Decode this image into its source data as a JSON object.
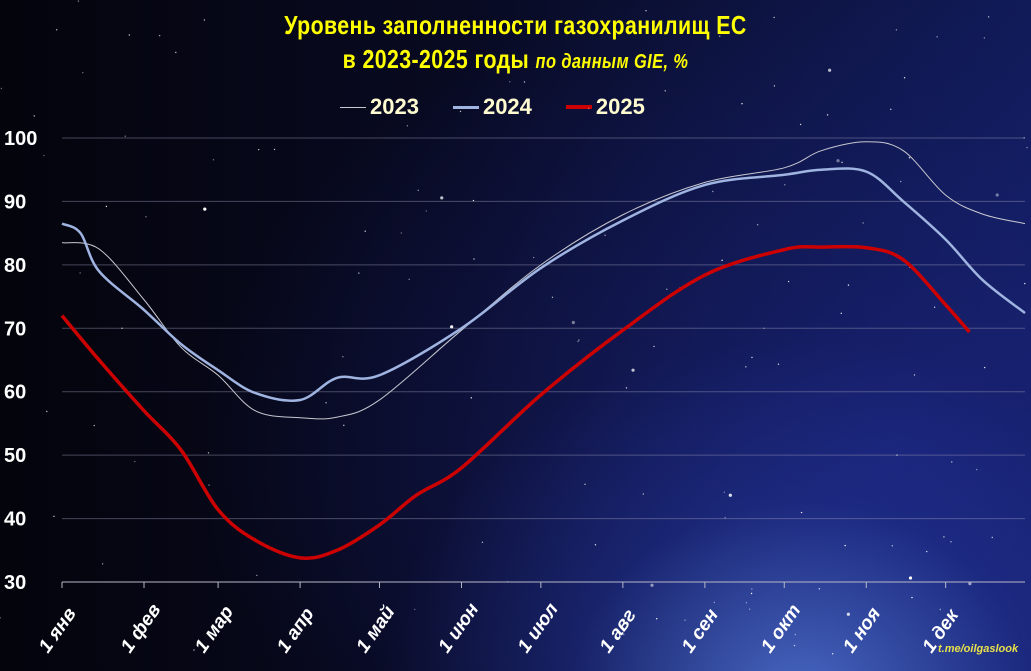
{
  "chart_data": {
    "type": "line",
    "title": "Уровень заполненности газохранилищ ЕС",
    "subtitle": "в 2023-2025 годы",
    "subtitle_note": "по данным GIE, %",
    "ylim": [
      30,
      100
    ],
    "yticks": [
      30,
      40,
      50,
      60,
      70,
      80,
      90,
      100
    ],
    "grid": true,
    "legend": "top-center",
    "x_unit": "day of year",
    "xticks": [
      {
        "day": 1,
        "label": "1 янв"
      },
      {
        "day": 32,
        "label": "1 фев"
      },
      {
        "day": 60,
        "label": "1 мар"
      },
      {
        "day": 91,
        "label": "1 апр"
      },
      {
        "day": 121,
        "label": "1 май"
      },
      {
        "day": 152,
        "label": "1 июн"
      },
      {
        "day": 182,
        "label": "1 июл"
      },
      {
        "day": 213,
        "label": "1 авг"
      },
      {
        "day": 244,
        "label": "1 сен"
      },
      {
        "day": 274,
        "label": "1 окт"
      },
      {
        "day": 305,
        "label": "1 ноя"
      },
      {
        "day": 335,
        "label": "1 дек"
      }
    ],
    "series": [
      {
        "name": "2023",
        "color": "#c8c8d0",
        "x": [
          1,
          15,
          32,
          46,
          60,
          74,
          91,
          105,
          121,
          152,
          182,
          213,
          244,
          274,
          288,
          305,
          319,
          335,
          349,
          365
        ],
        "y": [
          83.5,
          82.5,
          74.5,
          67,
          62.6,
          57,
          55.9,
          56,
          58.7,
          69.7,
          80,
          87.9,
          93,
          95.3,
          98,
          99.4,
          98,
          91,
          88,
          86.5
        ]
      },
      {
        "name": "2024",
        "color": "#9fb4e0",
        "x": [
          1,
          8,
          15,
          32,
          46,
          60,
          74,
          91,
          105,
          121,
          152,
          182,
          213,
          244,
          274,
          288,
          305,
          319,
          335,
          349,
          365
        ],
        "y": [
          86.5,
          85,
          79,
          72.9,
          67.5,
          63.4,
          59.8,
          58.7,
          62.2,
          62.6,
          70,
          79.5,
          87,
          92.6,
          94.2,
          95,
          94.7,
          90,
          84,
          77.6,
          72.4
        ]
      },
      {
        "name": "2025",
        "color": "#cc0000",
        "x": [
          1,
          15,
          32,
          46,
          60,
          74,
          91,
          105,
          121,
          135,
          152,
          182,
          213,
          244,
          274,
          288,
          305,
          319,
          335,
          344
        ],
        "y": [
          72,
          65,
          57,
          50.8,
          41.4,
          36.6,
          33.8,
          35,
          39,
          43.7,
          48,
          59.5,
          69.7,
          78.4,
          82.4,
          82.8,
          82.7,
          80.8,
          73.7,
          69.4
        ]
      }
    ]
  },
  "watermark": "t.me/oilgaslook"
}
